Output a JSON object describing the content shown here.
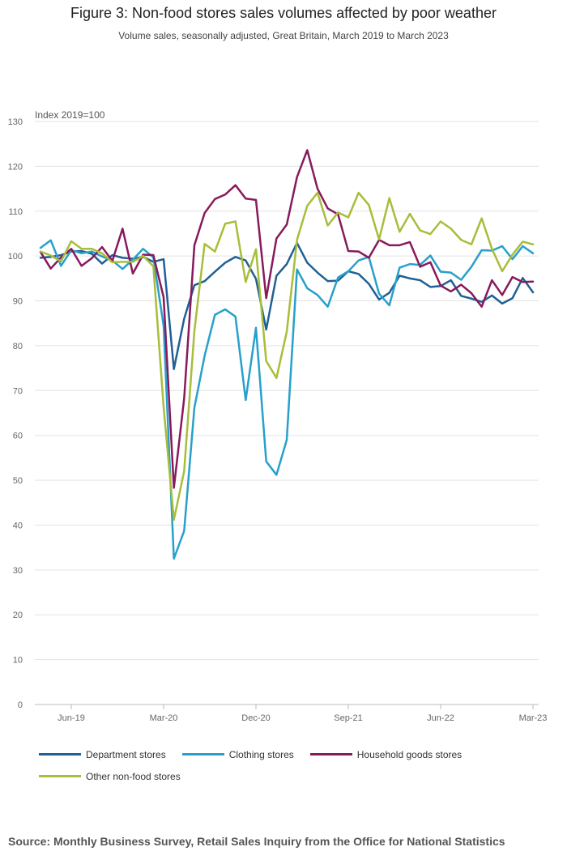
{
  "chart_data": {
    "type": "line",
    "title": "Figure 3: Non-food stores sales volumes affected by poor weather",
    "subtitle": "Volume sales, seasonally adjusted, Great Britain, March 2019 to March 2023",
    "ylabel": "Index 2019=100",
    "xlabel": "",
    "ylim": [
      0,
      130
    ],
    "yticks": [
      0,
      10,
      20,
      30,
      40,
      50,
      60,
      70,
      80,
      90,
      100,
      110,
      120,
      130
    ],
    "x": [
      "Mar-19",
      "Apr-19",
      "May-19",
      "Jun-19",
      "Jul-19",
      "Aug-19",
      "Sep-19",
      "Oct-19",
      "Nov-19",
      "Dec-19",
      "Jan-20",
      "Feb-20",
      "Mar-20",
      "Apr-20",
      "May-20",
      "Jun-20",
      "Jul-20",
      "Aug-20",
      "Sep-20",
      "Oct-20",
      "Nov-20",
      "Dec-20",
      "Jan-21",
      "Feb-21",
      "Mar-21",
      "Apr-21",
      "May-21",
      "Jun-21",
      "Jul-21",
      "Aug-21",
      "Sep-21",
      "Oct-21",
      "Nov-21",
      "Dec-21",
      "Jan-22",
      "Feb-22",
      "Mar-22",
      "Apr-22",
      "May-22",
      "Jun-22",
      "Jul-22",
      "Aug-22",
      "Sep-22",
      "Oct-22",
      "Nov-22",
      "Dec-22",
      "Jan-23",
      "Feb-23",
      "Mar-23"
    ],
    "xtick_labels": [
      "Jun-19",
      "Mar-20",
      "Dec-20",
      "Sep-21",
      "Jun-22",
      "Mar-23"
    ],
    "grid": true,
    "legend_position": "bottom",
    "series": [
      {
        "name": "Department stores",
        "color": "#206095",
        "values": [
          99.6,
          99.8,
          100.2,
          101.0,
          101.1,
          100.5,
          98.3,
          100.2,
          99.6,
          99.4,
          99.8,
          98.7,
          99.3,
          74.8,
          86.0,
          93.5,
          94.4,
          96.5,
          98.5,
          99.8,
          99.0,
          94.9,
          83.6,
          95.6,
          98.2,
          102.9,
          98.5,
          96.3,
          94.4,
          94.5,
          96.6,
          96.0,
          93.8,
          90.3,
          91.8,
          95.6,
          95.0,
          94.6,
          93.1,
          93.3,
          94.6,
          91.1,
          90.5,
          89.8,
          91.2,
          89.4,
          90.6,
          95.1,
          91.9
        ]
      },
      {
        "name": "Clothing stores",
        "color": "#27A0CC",
        "values": [
          101.8,
          103.5,
          97.8,
          101.3,
          100.6,
          101.0,
          99.9,
          99.0,
          97.1,
          99.2,
          101.6,
          99.7,
          84.4,
          32.5,
          38.7,
          66.2,
          77.8,
          86.9,
          88.1,
          86.5,
          67.9,
          84.0,
          54.2,
          51.2,
          59.0,
          97.0,
          92.8,
          91.3,
          88.7,
          95.2,
          96.6,
          99.0,
          99.8,
          91.6,
          89.0,
          97.4,
          98.2,
          98.0,
          100.1,
          96.5,
          96.3,
          94.7,
          97.6,
          101.3,
          101.2,
          102.2,
          99.3,
          102.2,
          100.6
        ]
      },
      {
        "name": "Household goods stores",
        "color": "#871A5B",
        "values": [
          100.9,
          97.2,
          99.7,
          101.6,
          97.8,
          99.5,
          102.0,
          98.9,
          106.1,
          96.1,
          100.3,
          100.2,
          90.8,
          48.3,
          68.2,
          102.4,
          109.6,
          112.7,
          113.7,
          115.8,
          112.8,
          112.5,
          90.6,
          103.9,
          107.0,
          117.6,
          123.6,
          115.0,
          110.6,
          109.3,
          101.1,
          101.0,
          99.6,
          103.6,
          102.4,
          102.4,
          103.1,
          97.6,
          98.6,
          93.4,
          92.1,
          93.6,
          91.7,
          88.7,
          94.6,
          91.3,
          95.3,
          94.2,
          94.3
        ]
      },
      {
        "name": "Other non-food stores",
        "color": "#A8BD3A",
        "values": [
          101.0,
          100.1,
          98.8,
          103.3,
          101.6,
          101.6,
          100.6,
          98.6,
          98.7,
          98.7,
          100.0,
          97.7,
          66.3,
          41.2,
          52.0,
          83.3,
          102.7,
          101.0,
          107.2,
          107.7,
          94.2,
          101.5,
          76.6,
          72.8,
          83.1,
          103.6,
          111.2,
          114.1,
          106.8,
          109.7,
          108.6,
          114.1,
          111.4,
          103.7,
          112.9,
          105.4,
          109.4,
          105.7,
          104.9,
          107.7,
          106.1,
          103.6,
          102.6,
          108.4,
          101.6,
          96.6,
          100.3,
          103.2,
          102.6
        ]
      }
    ]
  },
  "source": "Source: Monthly Business Survey, Retail Sales Inquiry from the Office for National Statistics"
}
